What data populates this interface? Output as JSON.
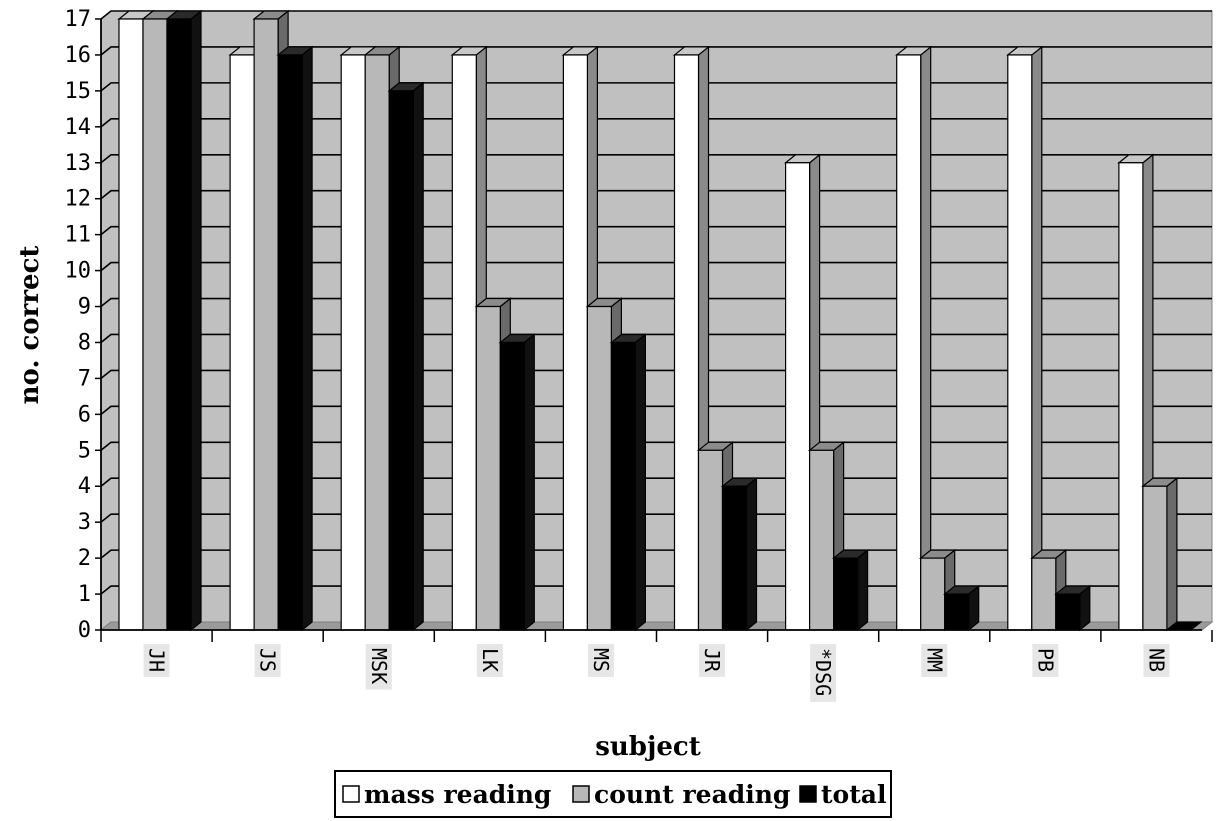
{
  "chart_data": {
    "type": "bar",
    "title": "",
    "xlabel": "subject",
    "ylabel": "no. correct",
    "ylim": [
      0,
      17
    ],
    "yticks": [
      0,
      1,
      2,
      3,
      4,
      5,
      6,
      7,
      8,
      9,
      10,
      11,
      12,
      13,
      14,
      15,
      16,
      17
    ],
    "grid": true,
    "legend_position": "bottom",
    "categories": [
      "JH",
      "JS",
      "MSK",
      "LK",
      "MS",
      "JR",
      "*DSG",
      "MM",
      "PB",
      "NB"
    ],
    "series": [
      {
        "name": "mass reading",
        "color": "#ffffff",
        "values": [
          17,
          16,
          16,
          16,
          16,
          16,
          13,
          16,
          16,
          13
        ]
      },
      {
        "name": "count reading",
        "color": "#b8b8b8",
        "values": [
          17,
          17,
          16,
          9,
          9,
          5,
          5,
          2,
          2,
          4
        ]
      },
      {
        "name": "total",
        "color": "#000000",
        "values": [
          17,
          16,
          15,
          8,
          8,
          4,
          2,
          1,
          1,
          0
        ]
      }
    ]
  }
}
